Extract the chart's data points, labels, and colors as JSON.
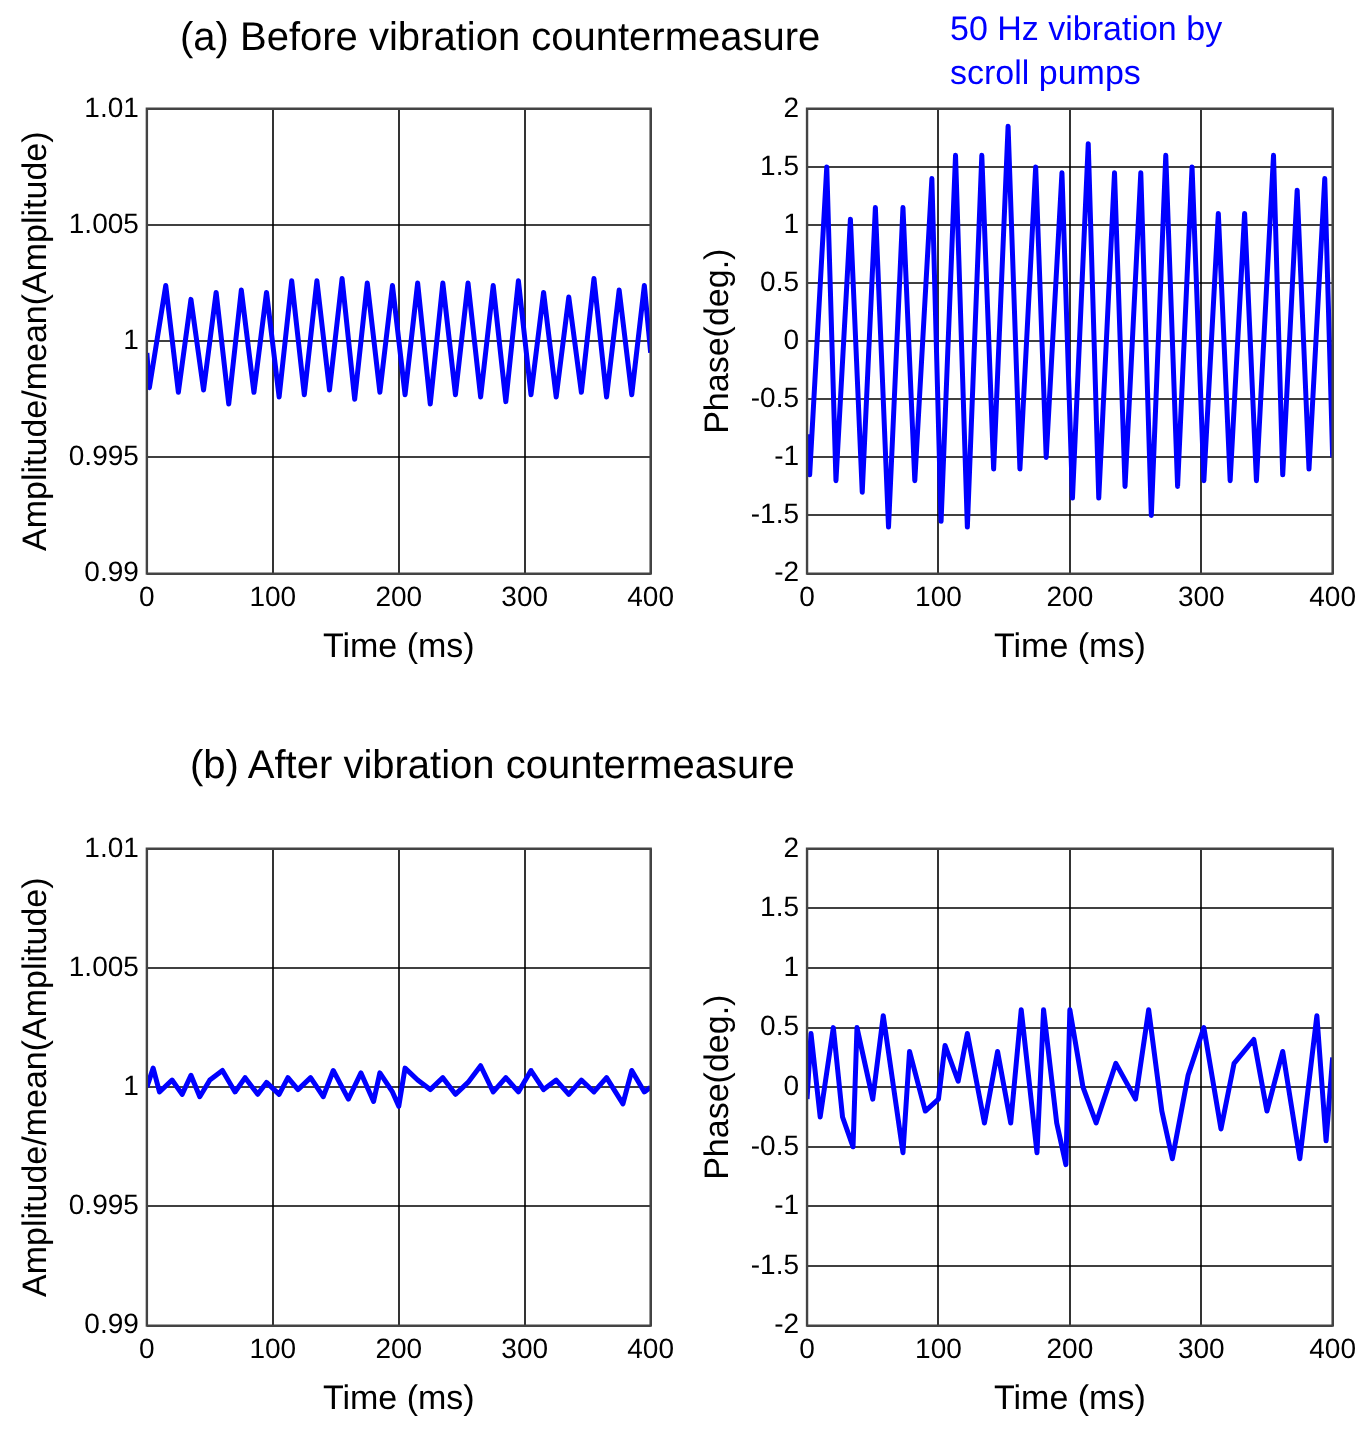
{
  "chart_data": [
    {
      "type": "line",
      "title": "(a) Before vibration countermeasure",
      "xlabel": "Time (ms)",
      "ylabel": "Amplitude/mean(Amplitude)",
      "xlim": [
        0,
        400
      ],
      "xticks": [
        0,
        100,
        200,
        300,
        400
      ],
      "ylim": [
        0.99,
        1.01
      ],
      "yticks": [
        0.99,
        0.995,
        1,
        1.005,
        1.01
      ],
      "grid": true,
      "marker": "none",
      "x": [
        0,
        2,
        15,
        25,
        35,
        45,
        55,
        65,
        75,
        85,
        95,
        105,
        115,
        125,
        135,
        145,
        155,
        165,
        175,
        185,
        195,
        205,
        215,
        225,
        235,
        245,
        255,
        265,
        275,
        285,
        295,
        305,
        315,
        325,
        335,
        345,
        355,
        365,
        375,
        385,
        395,
        400
      ],
      "series": [
        {
          "color": "#0000ff",
          "values": [
            0.9995,
            0.998,
            1.0024,
            0.9978,
            1.0018,
            0.9979,
            1.0021,
            0.9973,
            1.0022,
            0.9978,
            1.0021,
            0.9976,
            1.0026,
            0.9977,
            1.0026,
            0.9979,
            1.0027,
            0.9975,
            1.0025,
            0.9978,
            1.0024,
            0.9977,
            1.0025,
            0.9973,
            1.0025,
            0.9977,
            1.0025,
            0.9976,
            1.0024,
            0.9974,
            1.0026,
            0.9977,
            1.0021,
            0.9976,
            1.0019,
            0.9978,
            1.0027,
            0.9976,
            1.0022,
            0.9977,
            1.0024,
            0.9995
          ]
        }
      ]
    },
    {
      "type": "line",
      "xlabel": "Time (ms)",
      "ylabel": "Phase(deg.)",
      "annotations": [
        "50 Hz vibration by scroll pumps"
      ],
      "xlim": [
        0,
        400
      ],
      "xticks": [
        0,
        100,
        200,
        300,
        400
      ],
      "ylim": [
        -2,
        2
      ],
      "yticks": [
        -2,
        -1.5,
        -1,
        -0.5,
        0,
        0.5,
        1,
        1.5,
        2
      ],
      "grid": true,
      "marker": "none",
      "x": [
        0,
        2,
        15,
        22,
        33,
        42,
        52,
        62,
        73,
        82,
        95,
        102,
        113,
        122,
        133,
        142,
        153,
        162,
        174,
        182,
        194,
        202,
        214,
        222,
        234,
        242,
        254,
        262,
        273,
        282,
        293,
        302,
        313,
        322,
        333,
        342,
        355,
        362,
        373,
        382,
        394,
        400
      ],
      "series": [
        {
          "color": "#0000ff",
          "values": [
            -0.8,
            -1.15,
            1.5,
            -1.2,
            1.05,
            -1.3,
            1.15,
            -1.6,
            1.15,
            -1.2,
            1.4,
            -1.55,
            1.6,
            -1.6,
            1.6,
            -1.1,
            1.85,
            -1.1,
            1.5,
            -1.0,
            1.45,
            -1.35,
            1.7,
            -1.35,
            1.45,
            -1.25,
            1.45,
            -1.5,
            1.6,
            -1.25,
            1.5,
            -1.2,
            1.1,
            -1.2,
            1.1,
            -1.2,
            1.6,
            -1.15,
            1.3,
            -1.1,
            1.4,
            -1.0
          ]
        }
      ]
    },
    {
      "type": "line",
      "title": "(b) After vibration countermeasure",
      "xlabel": "Time (ms)",
      "ylabel": "Amplitude/mean(Amplitude)",
      "xlim": [
        0,
        400
      ],
      "xticks": [
        0,
        100,
        200,
        300,
        400
      ],
      "ylim": [
        0.99,
        1.01
      ],
      "yticks": [
        0.99,
        0.995,
        1,
        1.005,
        1.01
      ],
      "grid": true,
      "marker": "none",
      "x": [
        0,
        5,
        10,
        20,
        28,
        35,
        42,
        50,
        60,
        70,
        78,
        88,
        95,
        105,
        112,
        120,
        130,
        140,
        148,
        160,
        170,
        180,
        185,
        195,
        200,
        205,
        215,
        225,
        235,
        245,
        255,
        265,
        275,
        285,
        295,
        305,
        315,
        325,
        335,
        345,
        355,
        365,
        378,
        385,
        395,
        400
      ],
      "series": [
        {
          "color": "#0000ff",
          "values": [
            1.0,
            1.0008,
            0.9998,
            1.0003,
            0.9997,
            1.0005,
            0.9996,
            1.0003,
            1.0007,
            0.9998,
            1.0004,
            0.9997,
            1.0002,
            0.9997,
            1.0004,
            0.9999,
            1.0004,
            0.9996,
            1.0007,
            0.9995,
            1.0006,
            0.9994,
            1.0006,
            0.9998,
            0.9992,
            1.0008,
            1.0003,
            0.9999,
            1.0004,
            0.9997,
            1.0002,
            1.0009,
            0.9998,
            1.0004,
            0.9998,
            1.0007,
            0.9999,
            1.0003,
            0.9997,
            1.0003,
            0.9998,
            1.0004,
            0.9993,
            1.0007,
            0.9998,
            1.0
          ]
        }
      ]
    },
    {
      "type": "line",
      "xlabel": "Time (ms)",
      "ylabel": "Phase(deg.)",
      "xlim": [
        0,
        400
      ],
      "xticks": [
        0,
        100,
        200,
        300,
        400
      ],
      "ylim": [
        -2,
        2
      ],
      "yticks": [
        -2,
        -1.5,
        -1,
        -0.5,
        0,
        0.5,
        1,
        1.5,
        2
      ],
      "grid": true,
      "marker": "none",
      "x": [
        0,
        3,
        10,
        20,
        27,
        35,
        38,
        50,
        58,
        73,
        78,
        90,
        100,
        105,
        115,
        122,
        135,
        145,
        155,
        163,
        175,
        180,
        190,
        197,
        200,
        210,
        220,
        235,
        250,
        260,
        270,
        278,
        290,
        302,
        315,
        325,
        340,
        350,
        362,
        375,
        388,
        395,
        400
      ],
      "series": [
        {
          "color": "#0000ff",
          "values": [
            -0.1,
            0.45,
            -0.25,
            0.5,
            -0.25,
            -0.5,
            0.5,
            -0.1,
            0.6,
            -0.55,
            0.3,
            -0.2,
            -0.1,
            0.35,
            0.05,
            0.45,
            -0.3,
            0.3,
            -0.3,
            0.65,
            -0.55,
            0.65,
            -0.3,
            -0.65,
            0.65,
            0.0,
            -0.3,
            0.2,
            -0.1,
            0.65,
            -0.2,
            -0.6,
            0.1,
            0.5,
            -0.35,
            0.2,
            0.4,
            -0.2,
            0.3,
            -0.6,
            0.6,
            -0.45,
            0.25
          ]
        }
      ]
    }
  ]
}
